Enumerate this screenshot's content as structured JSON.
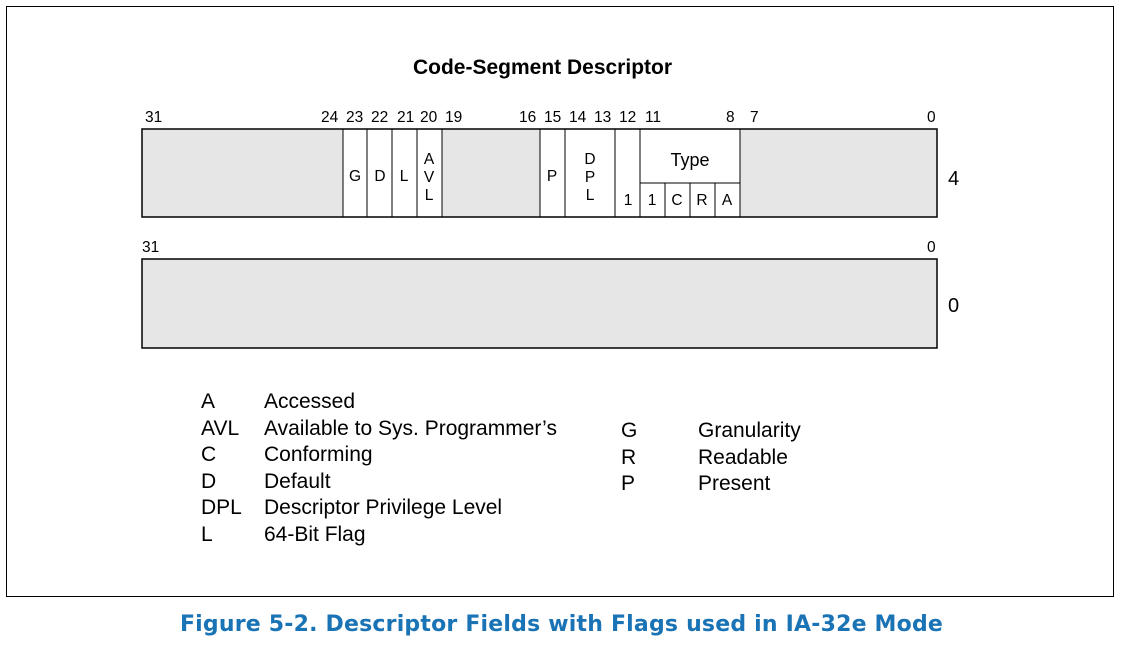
{
  "diagram": {
    "title": "Code-Segment Descriptor",
    "upper_dword": {
      "offset_label": "4",
      "bit_labels": [
        "31",
        "24",
        "23",
        "22",
        "21",
        "20",
        "19",
        "16",
        "15",
        "14",
        "13",
        "12",
        "11",
        "8",
        "7",
        "0"
      ],
      "fields": {
        "g": "G",
        "d": "D",
        "l": "L",
        "avl": [
          "A",
          "V",
          "L"
        ],
        "p": "P",
        "dpl": [
          "D",
          "P",
          "L"
        ],
        "s_bit": "1",
        "type_label": "Type",
        "type_bits": [
          "1",
          "C",
          "R",
          "A"
        ]
      }
    },
    "lower_dword": {
      "offset_label": "0",
      "bit_labels": [
        "31",
        "0"
      ]
    }
  },
  "legend": {
    "left": [
      {
        "key": "A",
        "desc": "Accessed"
      },
      {
        "key": "AVL",
        "desc": "Available to Sys. Programmer’s"
      },
      {
        "key": "C",
        "desc": "Conforming"
      },
      {
        "key": "D",
        "desc": "Default"
      },
      {
        "key": "DPL",
        "desc": "Descriptor Privilege Level"
      },
      {
        "key": "L",
        "desc": "64-Bit Flag"
      }
    ],
    "right": [
      {
        "key": "G",
        "desc": "Granularity"
      },
      {
        "key": "R",
        "desc": "Readable"
      },
      {
        "key": "P",
        "desc": "Present"
      }
    ]
  },
  "caption": "Figure 5-2.  Descriptor Fields with Flags used in IA-32e Mode",
  "colors": {
    "shade": "#e6e6e6",
    "caption": "#1a73b5"
  }
}
